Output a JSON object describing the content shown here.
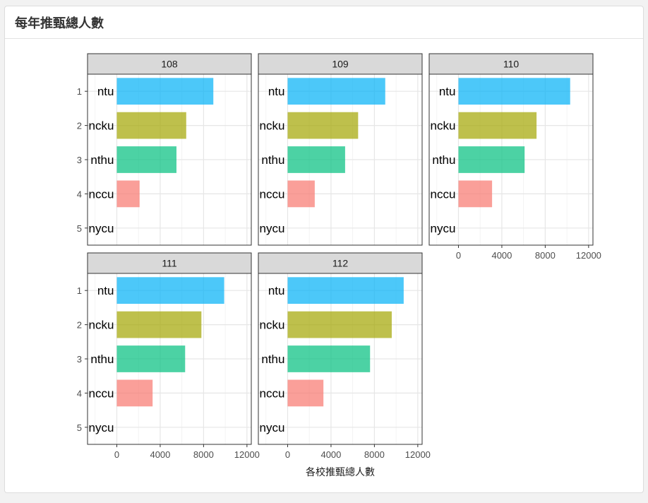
{
  "card": {
    "title": "每年推甄總人數"
  },
  "chart_data": {
    "type": "bar",
    "orientation": "horizontal",
    "facet_by": "year",
    "xlabel": "各校推甄總人數",
    "ylabel": "",
    "xlim": [
      -2700,
      12400
    ],
    "x_ticks": [
      0,
      4000,
      8000,
      12000
    ],
    "grid": true,
    "ranks": [
      "1",
      "2",
      "3",
      "4",
      "5"
    ],
    "schools": [
      "ntu",
      "ncku",
      "nthu",
      "nccu",
      "nycu"
    ],
    "colors": {
      "ntu": "#00B0F6",
      "ncku": "#A3A500",
      "nthu": "#00BF7D",
      "nccu": "#F8766D",
      "nycu": "#E76BF3"
    },
    "bar_opacity": 0.7,
    "strip_color": "#d9d9d9",
    "facets": [
      {
        "year": "108",
        "values": {
          "ntu": 8900,
          "ncku": 6400,
          "nthu": 5500,
          "nccu": 2100,
          "nycu": 0
        }
      },
      {
        "year": "109",
        "values": {
          "ntu": 9000,
          "ncku": 6500,
          "nthu": 5300,
          "nccu": 2500,
          "nycu": 0
        }
      },
      {
        "year": "110",
        "values": {
          "ntu": 10300,
          "ncku": 7200,
          "nthu": 6100,
          "nccu": 3100,
          "nycu": 0
        }
      },
      {
        "year": "111",
        "values": {
          "ntu": 9900,
          "ncku": 7800,
          "nthu": 6300,
          "nccu": 3300,
          "nycu": 0
        }
      },
      {
        "year": "112",
        "values": {
          "ntu": 10700,
          "ncku": 9600,
          "nthu": 7600,
          "nccu": 3300,
          "nycu": 0
        }
      }
    ]
  }
}
